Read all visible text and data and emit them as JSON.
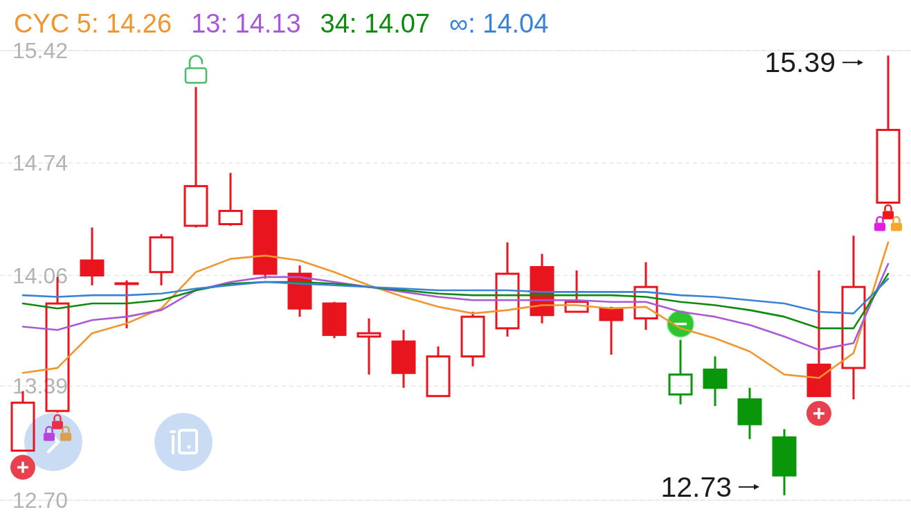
{
  "chart_data": {
    "type": "candlestick",
    "categories": [
      null,
      null,
      null,
      null,
      null,
      null,
      null,
      null,
      null,
      null,
      null,
      null,
      null,
      null,
      null,
      null,
      null,
      null,
      null,
      null,
      null,
      null,
      null,
      null,
      null,
      null
    ],
    "ohlc": [
      [
        13.0,
        13.36,
        13.0,
        13.29
      ],
      [
        13.24,
        14.05,
        13.23,
        13.89
      ],
      [
        14.15,
        14.35,
        14.0,
        14.06
      ],
      [
        14.01,
        14.03,
        13.74,
        14.01
      ],
      [
        14.08,
        14.31,
        14.0,
        14.29
      ],
      [
        14.36,
        15.2,
        14.35,
        14.6
      ],
      [
        14.37,
        14.68,
        14.36,
        14.45
      ],
      [
        14.45,
        14.45,
        14.04,
        14.07
      ],
      [
        14.07,
        14.12,
        13.81,
        13.86
      ],
      [
        13.89,
        13.9,
        13.68,
        13.7
      ],
      [
        13.69,
        13.8,
        13.46,
        13.71
      ],
      [
        13.66,
        13.73,
        13.38,
        13.47
      ],
      [
        13.33,
        13.63,
        13.33,
        13.57
      ],
      [
        13.57,
        13.84,
        13.51,
        13.81
      ],
      [
        13.74,
        14.26,
        13.69,
        14.07
      ],
      [
        14.11,
        14.19,
        13.77,
        13.82
      ],
      [
        13.84,
        14.09,
        13.84,
        13.9
      ],
      [
        13.86,
        13.87,
        13.58,
        13.79
      ],
      [
        13.8,
        14.14,
        13.73,
        13.99
      ],
      [
        13.34,
        13.67,
        13.28,
        13.46
      ],
      [
        13.49,
        13.57,
        13.27,
        13.38
      ],
      [
        13.31,
        13.38,
        13.07,
        13.16
      ],
      [
        13.08,
        13.13,
        12.73,
        12.85
      ],
      [
        13.52,
        14.09,
        13.33,
        13.33
      ],
      [
        13.5,
        14.3,
        13.31,
        13.99
      ],
      [
        14.5,
        15.39,
        14.5,
        14.94
      ]
    ],
    "colors": [
      "#e8141e",
      "#e8141e",
      "#e8141e",
      "#e8141e",
      "#e8141e",
      "#e8141e",
      "#e8141e",
      "#e8141e",
      "#e8141e",
      "#e8141e",
      "#e8141e",
      "#e8141e",
      "#e8141e",
      "#e8141e",
      "#e8141e",
      "#e8141e",
      "#e8141e",
      "#e8141e",
      "#e8141e",
      "#0a960a",
      "#0a960a",
      "#0a960a",
      "#0a960a",
      "#e8141e",
      "#e8141e",
      "#e8141e"
    ],
    "series": [
      {
        "name": "CYC 5: 14.26",
        "type": "line",
        "color": "#f0962e",
        "values": [
          13.47,
          13.5,
          13.71,
          13.77,
          13.86,
          14.08,
          14.16,
          14.18,
          14.15,
          14.08,
          14.0,
          13.93,
          13.87,
          13.83,
          13.85,
          13.88,
          13.88,
          13.86,
          13.87,
          13.74,
          13.68,
          13.6,
          13.46,
          13.44,
          13.59,
          14.26
        ]
      },
      {
        "name": "13: 14.13",
        "type": "line",
        "color": "#a85ad6",
        "values": [
          13.75,
          13.73,
          13.79,
          13.81,
          13.85,
          13.97,
          14.02,
          14.05,
          14.05,
          14.02,
          13.99,
          13.96,
          13.93,
          13.91,
          13.91,
          13.91,
          13.91,
          13.9,
          13.9,
          13.84,
          13.81,
          13.76,
          13.69,
          13.61,
          13.65,
          14.13
        ]
      },
      {
        "name": "34: 14.07",
        "type": "line",
        "color": "#0e8a0e",
        "values": [
          13.89,
          13.86,
          13.89,
          13.89,
          13.91,
          13.97,
          14.01,
          14.02,
          14.02,
          14.01,
          13.99,
          13.97,
          13.95,
          13.94,
          13.94,
          13.94,
          13.94,
          13.94,
          13.93,
          13.9,
          13.88,
          13.85,
          13.81,
          13.74,
          13.74,
          14.07
        ]
      },
      {
        "name": "∞: 14.04",
        "type": "line",
        "color": "#3a82d8",
        "values": [
          13.94,
          13.93,
          13.94,
          13.94,
          13.95,
          13.98,
          14.0,
          14.02,
          14.01,
          14.0,
          13.99,
          13.98,
          13.97,
          13.97,
          13.97,
          13.96,
          13.96,
          13.96,
          13.96,
          13.94,
          13.93,
          13.91,
          13.89,
          13.84,
          13.83,
          14.04
        ]
      }
    ],
    "ylim": [
      12.7,
      15.42
    ],
    "yticks": [
      {
        "value": 12.7,
        "label": "12.70"
      },
      13.39,
      14.06,
      14.74,
      15.42
    ],
    "grid": "y",
    "annotations": [
      "15.39",
      "12.73"
    ]
  }
}
